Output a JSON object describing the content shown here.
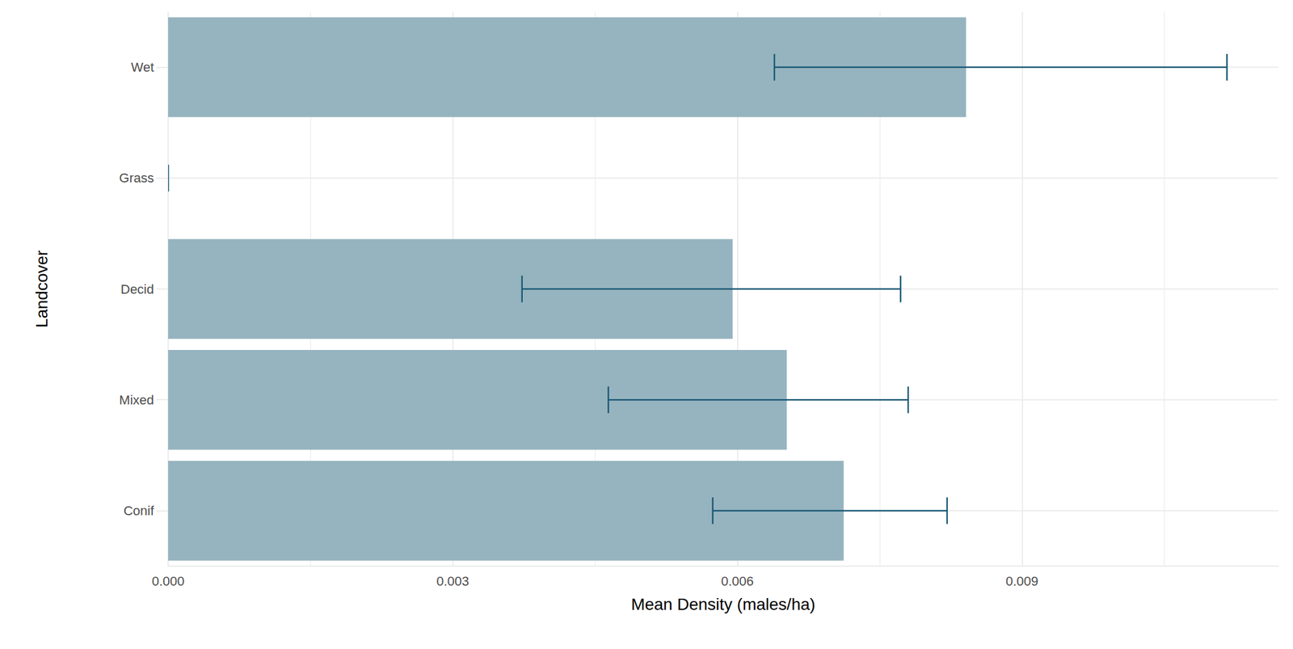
{
  "chart_data": {
    "type": "bar",
    "orientation": "horizontal",
    "x_label": "Mean Density (males/ha)",
    "y_label": "Landcover",
    "categories": [
      "Conif",
      "Mixed",
      "Decid",
      "Grass",
      "Wet"
    ],
    "values": [
      0.00712,
      0.00652,
      0.00595,
      0,
      0.00841
    ],
    "error_low": [
      0.00574,
      0.00464,
      0.00373,
      0,
      0.00639
    ],
    "error_high": [
      0.00821,
      0.0078,
      0.00772,
      0,
      0.01116
    ],
    "color": "#96b4bf",
    "error_color": "#1a5874",
    "xlim": [
      0,
      0.0117
    ],
    "xticks": [
      {
        "value": 0,
        "label": "0.000"
      },
      {
        "value": 0.003,
        "label": "0.003"
      },
      {
        "value": 0.006,
        "label": "0.006"
      },
      {
        "value": 0.009,
        "label": "0.009"
      }
    ],
    "grid": true
  }
}
